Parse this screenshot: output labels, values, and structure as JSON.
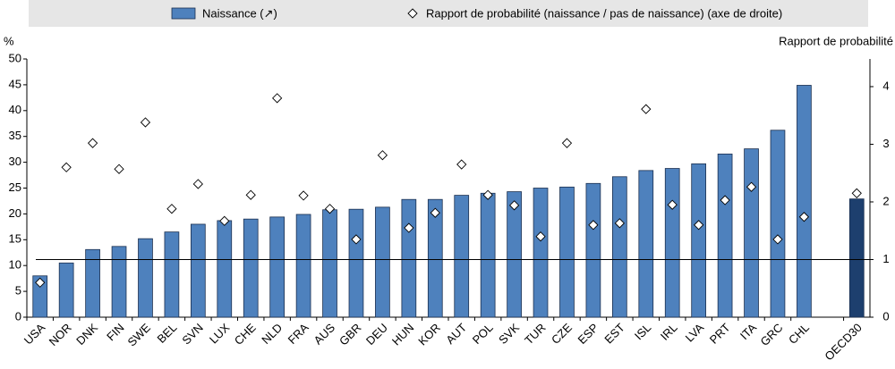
{
  "chart_data": {
    "type": "bar-scatter",
    "y_label": "%",
    "y2_label": "Rapport de probabilité",
    "legend": "top",
    "categories": [
      "USA",
      "NOR",
      "DNK",
      "FIN",
      "SWE",
      "BEL",
      "SVN",
      "LUX",
      "CHE",
      "NLD",
      "FRA",
      "AUS",
      "GBR",
      "DEU",
      "HUN",
      "KOR",
      "AUT",
      "POL",
      "SVK",
      "TUR",
      "CZE",
      "ESP",
      "EST",
      "ISL",
      "IRL",
      "LVA",
      "PRT",
      "ITA",
      "GRC",
      "CHL",
      null,
      "OECD30"
    ],
    "series": [
      {
        "name": "Naissance (↗)",
        "kind": "bar",
        "color": "#4e81bd",
        "bar_colors": [
          "#4e81bd",
          "#4e81bd",
          "#4e81bd",
          "#4e81bd",
          "#4e81bd",
          "#4e81bd",
          "#4e81bd",
          "#4e81bd",
          "#4e81bd",
          "#4e81bd",
          "#4e81bd",
          "#4e81bd",
          "#4e81bd",
          "#4e81bd",
          "#4e81bd",
          "#4e81bd",
          "#4e81bd",
          "#4e81bd",
          "#4e81bd",
          "#4e81bd",
          "#4e81bd",
          "#4e81bd",
          "#4e81bd",
          "#4e81bd",
          "#4e81bd",
          "#4e81bd",
          "#4e81bd",
          "#4e81bd",
          "#4e81bd",
          "#4e81bd",
          null,
          "#1d3f6e"
        ],
        "values": [
          8,
          10.5,
          13.1,
          13.7,
          15.2,
          16.5,
          18,
          18.7,
          19,
          19.4,
          19.9,
          20.8,
          20.9,
          21.3,
          22.8,
          22.8,
          23.6,
          24,
          24.3,
          25,
          25.2,
          25.9,
          27.2,
          28.4,
          28.8,
          29.7,
          31.6,
          32.6,
          36.2,
          44.9,
          null,
          22.9
        ]
      },
      {
        "name": "Rapport de probabilité (naissance / pas de naissance) (axe de droite)",
        "kind": "diamond",
        "axis": "y2",
        "color": "#ffffff",
        "values": [
          0.6,
          2.6,
          3.02,
          2.57,
          3.38,
          1.88,
          2.31,
          1.67,
          2.12,
          3.8,
          2.11,
          1.88,
          1.35,
          2.81,
          1.55,
          1.81,
          2.65,
          2.12,
          1.94,
          1.4,
          3.02,
          1.6,
          1.63,
          3.61,
          1.95,
          1.6,
          2.03,
          2.26,
          1.35,
          1.74,
          null,
          2.15
        ]
      }
    ],
    "ylim": [
      0,
      50
    ],
    "yticks": [
      0,
      5,
      10,
      15,
      20,
      25,
      30,
      35,
      40,
      45,
      50
    ],
    "y2lim": [
      0,
      4.48
    ],
    "y2ticks": [
      0,
      1,
      2,
      3,
      4
    ],
    "y2_reference": 1
  }
}
